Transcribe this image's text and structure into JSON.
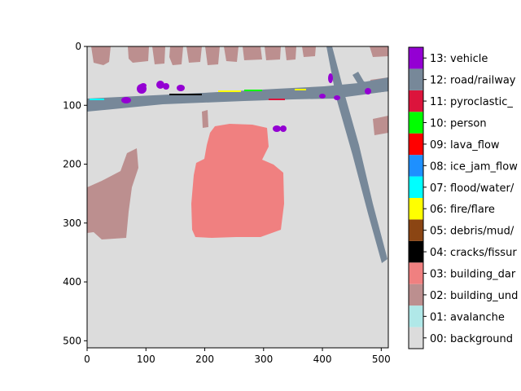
{
  "chart_data": {
    "type": "heatmap",
    "xlim": [
      0,
      512
    ],
    "ylim": [
      512,
      0
    ],
    "x_ticks": [
      "0",
      "100",
      "200",
      "300",
      "400",
      "500"
    ],
    "y_ticks": [
      "0",
      "100",
      "200",
      "300",
      "400",
      "500"
    ],
    "x_tick_values": [
      0,
      100,
      200,
      300,
      400,
      500
    ],
    "y_tick_values": [
      0,
      100,
      200,
      300,
      400,
      500
    ],
    "legend_placement": "right",
    "classes": [
      {
        "id": 0,
        "label": "00: background",
        "color": "#dcdcdc"
      },
      {
        "id": 1,
        "label": "01: avalanche",
        "color": "#b0e8e8"
      },
      {
        "id": 2,
        "label": "02: building_und",
        "color": "#bc8f8f"
      },
      {
        "id": 3,
        "label": "03: building_dar",
        "color": "#f08080"
      },
      {
        "id": 4,
        "label": "04: cracks/fissur",
        "color": "#000000"
      },
      {
        "id": 5,
        "label": "05: debris/mud/",
        "color": "#8b4513"
      },
      {
        "id": 6,
        "label": "06: fire/flare",
        "color": "#ffff00"
      },
      {
        "id": 7,
        "label": "07: flood/water/",
        "color": "#00ffff"
      },
      {
        "id": 8,
        "label": "08: ice_jam_flow",
        "color": "#1e90ff"
      },
      {
        "id": 9,
        "label": "09: lava_flow",
        "color": "#ff0000"
      },
      {
        "id": 10,
        "label": "10: person",
        "color": "#00ff00"
      },
      {
        "id": 11,
        "label": "11: pyroclastic_",
        "color": "#dc143c"
      },
      {
        "id": 12,
        "label": "12: road/railway",
        "color": "#778899"
      },
      {
        "id": 13,
        "label": "13: vehicle",
        "color": "#9400d3"
      }
    ]
  }
}
